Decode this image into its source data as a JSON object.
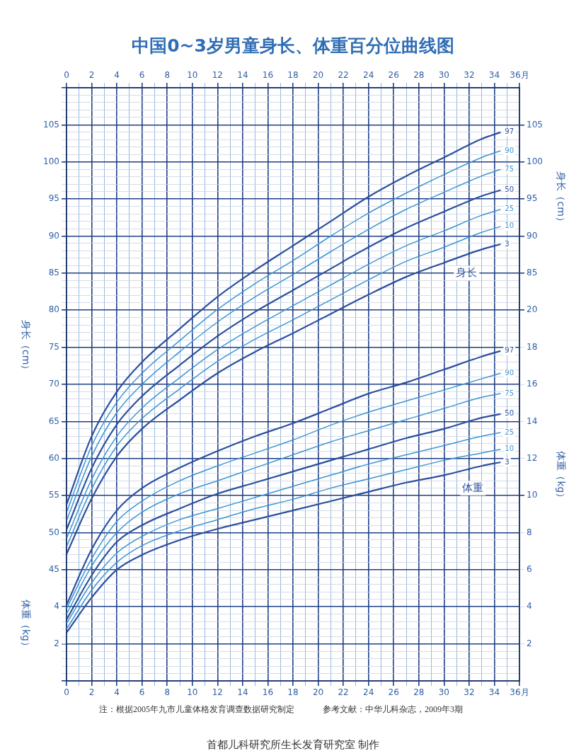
{
  "chart_data": [
    {
      "type": "line",
      "title": "中国0~3岁男童身长、体重百分位曲线图",
      "x": [
        0,
        2,
        4,
        6,
        9,
        12,
        15,
        18,
        21,
        24,
        27,
        30,
        33,
        34.5
      ],
      "series": [
        {
          "name": "97",
          "color": "#2c4f9e",
          "values": [
            53.8,
            63.0,
            69.0,
            73.0,
            77.5,
            81.8,
            85.4,
            88.7,
            92.0,
            95.3,
            98.1,
            100.6,
            103.1,
            104.0
          ]
        },
        {
          "name": "90",
          "color": "#3d95d3",
          "values": [
            52.7,
            61.7,
            67.6,
            71.5,
            75.9,
            80.1,
            83.6,
            86.7,
            90.0,
            93.1,
            95.8,
            98.3,
            100.6,
            101.5
          ]
        },
        {
          "name": "75",
          "color": "#3d95d3",
          "values": [
            51.6,
            60.3,
            66.2,
            70.0,
            74.4,
            78.4,
            81.8,
            84.8,
            87.9,
            90.9,
            93.6,
            95.9,
            98.1,
            99.0
          ]
        },
        {
          "name": "50",
          "color": "#2c4f9e",
          "values": [
            50.4,
            58.7,
            64.6,
            68.4,
            72.6,
            76.5,
            79.8,
            82.7,
            85.6,
            88.5,
            91.1,
            93.3,
            95.4,
            96.2
          ]
        },
        {
          "name": "25",
          "color": "#3d95d3",
          "values": [
            49.2,
            57.2,
            63.0,
            66.8,
            70.9,
            74.7,
            77.8,
            80.6,
            83.4,
            86.2,
            88.7,
            90.7,
            92.8,
            93.6
          ]
        },
        {
          "name": "10",
          "color": "#3d95d3",
          "values": [
            48.1,
            55.9,
            61.7,
            65.4,
            69.4,
            73.1,
            76.1,
            78.7,
            81.4,
            84.1,
            86.6,
            88.5,
            90.5,
            91.3
          ]
        },
        {
          "name": "3",
          "color": "#2c4f9e",
          "values": [
            47.1,
            54.6,
            60.3,
            64.0,
            67.9,
            71.5,
            74.4,
            76.9,
            79.5,
            82.1,
            84.5,
            86.4,
            88.2,
            88.9
          ]
        }
      ],
      "xlim": [
        0,
        36
      ],
      "xticks": [
        0,
        {
          "value": 1,
          "label": null
        },
        2,
        {
          "value": 3,
          "label": null
        },
        4,
        {
          "value": 5,
          "label": null
        },
        6,
        {
          "value": 7,
          "label": null
        },
        8,
        {
          "value": 9,
          "label": null
        },
        10,
        {
          "value": 11,
          "label": null
        },
        12,
        {
          "value": 13,
          "label": null
        },
        14,
        {
          "value": 15,
          "label": null
        },
        16,
        {
          "value": 17,
          "label": null
        },
        18,
        {
          "value": 19,
          "label": null
        },
        20,
        {
          "value": 21,
          "label": null
        },
        22,
        {
          "value": 23,
          "label": null
        },
        24,
        {
          "value": 25,
          "label": null
        },
        26,
        {
          "value": 27,
          "label": null
        },
        28,
        {
          "value": 29,
          "label": null
        },
        30,
        {
          "value": 31,
          "label": null
        },
        32,
        {
          "value": 33,
          "label": null
        },
        34,
        {
          "value": 35,
          "label": null
        },
        {
          "value": 36,
          "label": "36月"
        }
      ],
      "x2lim": [
        0,
        36
      ],
      "x2ticks": [
        0,
        {
          "value": 1,
          "label": null
        },
        2,
        {
          "value": 3,
          "label": null
        },
        4,
        {
          "value": 5,
          "label": null
        },
        6,
        {
          "value": 7,
          "label": null
        },
        8,
        {
          "value": 9,
          "label": null
        },
        10,
        {
          "value": 11,
          "label": null
        },
        12,
        {
          "value": 13,
          "label": null
        },
        14,
        {
          "value": 15,
          "label": null
        },
        16,
        {
          "value": 17,
          "label": null
        },
        18,
        {
          "value": 19,
          "label": null
        },
        20,
        {
          "value": 21,
          "label": null
        },
        22,
        {
          "value": 23,
          "label": null
        },
        24,
        {
          "value": 25,
          "label": null
        },
        26,
        {
          "value": 27,
          "label": null
        },
        28,
        {
          "value": 29,
          "label": null
        },
        30,
        {
          "value": 31,
          "label": null
        },
        32,
        {
          "value": 33,
          "label": null
        },
        34,
        {
          "value": 35,
          "label": null
        },
        {
          "value": 36,
          "label": "36月"
        }
      ],
      "ylim": [
        30,
        110
      ],
      "yticks": [
        {
          "value": 30,
          "label": null
        },
        {
          "value": 31,
          "label": null
        },
        {
          "value": 32,
          "label": null
        },
        {
          "value": 33,
          "label": null
        },
        {
          "value": 34,
          "label": null
        },
        {
          "value": 35,
          "label": null
        },
        {
          "value": 36,
          "label": null
        },
        {
          "value": 37,
          "label": null
        },
        {
          "value": 38,
          "label": null
        },
        {
          "value": 39,
          "label": null
        },
        {
          "value": 40,
          "label": null
        },
        {
          "value": 41,
          "label": null
        },
        {
          "value": 42,
          "label": null
        },
        {
          "value": 43,
          "label": null
        },
        {
          "value": 44,
          "label": null
        },
        45,
        {
          "value": 46,
          "label": null
        },
        {
          "value": 47,
          "label": null
        },
        {
          "value": 48,
          "label": null
        },
        {
          "value": 49,
          "label": null
        },
        50,
        {
          "value": 51,
          "label": null
        },
        {
          "value": 52,
          "label": null
        },
        {
          "value": 53,
          "label": null
        },
        {
          "value": 54,
          "label": null
        },
        55,
        {
          "value": 56,
          "label": null
        },
        {
          "value": 57,
          "label": null
        },
        {
          "value": 58,
          "label": null
        },
        {
          "value": 59,
          "label": null
        },
        60,
        {
          "value": 61,
          "label": null
        },
        {
          "value": 62,
          "label": null
        },
        {
          "value": 63,
          "label": null
        },
        {
          "value": 64,
          "label": null
        },
        65,
        {
          "value": 66,
          "label": null
        },
        {
          "value": 67,
          "label": null
        },
        {
          "value": 68,
          "label": null
        },
        {
          "value": 69,
          "label": null
        },
        70,
        {
          "value": 71,
          "label": null
        },
        {
          "value": 72,
          "label": null
        },
        {
          "value": 73,
          "label": null
        },
        {
          "value": 74,
          "label": null
        },
        75,
        {
          "value": 76,
          "label": null
        },
        {
          "value": 77,
          "label": null
        },
        {
          "value": 78,
          "label": null
        },
        {
          "value": 79,
          "label": null
        },
        80,
        {
          "value": 81,
          "label": null
        },
        {
          "value": 82,
          "label": null
        },
        {
          "value": 83,
          "label": null
        },
        {
          "value": 84,
          "label": null
        },
        85,
        {
          "value": 86,
          "label": null
        },
        {
          "value": 87,
          "label": null
        },
        {
          "value": 88,
          "label": null
        },
        {
          "value": 89,
          "label": null
        },
        90,
        {
          "value": 91,
          "label": null
        },
        {
          "value": 92,
          "label": null
        },
        {
          "value": 93,
          "label": null
        },
        {
          "value": 94,
          "label": null
        },
        95,
        {
          "value": 96,
          "label": null
        },
        {
          "value": 97,
          "label": null
        },
        {
          "value": 98,
          "label": null
        },
        {
          "value": 99,
          "label": null
        },
        100,
        {
          "value": 101,
          "label": null
        },
        {
          "value": 102,
          "label": null
        },
        {
          "value": 103,
          "label": null
        },
        {
          "value": 104,
          "label": null
        },
        105,
        {
          "value": 106,
          "label": null
        },
        {
          "value": 107,
          "label": null
        },
        {
          "value": 108,
          "label": null
        },
        {
          "value": 109,
          "label": null
        },
        {
          "value": 110,
          "label": null
        }
      ],
      "y2lim": [
        30,
        110
      ],
      "y2ticks": [
        85,
        90,
        95,
        100,
        105
      ],
      "ylabel": "身长（cm）",
      "y2label": "身长（cm）",
      "grid": true,
      "legend": false,
      "marker": "none",
      "annotations": [
        {
          "text": "身长",
          "x": 31.8,
          "y": 85
        },
        "注：根据2005年九市儿童体格发育调查数据研究制定",
        "参考文献：中华儿科杂志，2009年3期",
        "首都儿科研究所生长发育研究室 制作"
      ]
    },
    {
      "type": "line",
      "x": [
        0,
        2,
        4,
        6,
        9,
        12,
        15,
        18,
        21,
        24,
        27,
        30,
        33,
        34.5
      ],
      "series": [
        {
          "name": "97",
          "color": "#2c4f9e",
          "values": [
            4.1,
            7.1,
            9.2,
            10.4,
            11.5,
            12.4,
            13.2,
            13.9,
            14.7,
            15.5,
            16.1,
            16.8,
            17.5,
            17.8
          ]
        },
        {
          "name": "90",
          "color": "#3d95d3",
          "values": [
            3.9,
            6.6,
            8.6,
            9.7,
            10.8,
            11.6,
            12.3,
            13.0,
            13.8,
            14.5,
            15.1,
            15.7,
            16.3,
            16.6
          ]
        },
        {
          "name": "75",
          "color": "#3d95d3",
          "values": [
            3.6,
            6.2,
            8.0,
            9.1,
            10.1,
            10.8,
            11.5,
            12.2,
            12.9,
            13.5,
            14.1,
            14.7,
            15.3,
            15.5
          ]
        },
        {
          "name": "50",
          "color": "#2c4f9e",
          "values": [
            3.3,
            5.7,
            7.5,
            8.4,
            9.3,
            10.1,
            10.7,
            11.3,
            11.9,
            12.5,
            13.1,
            13.6,
            14.2,
            14.4
          ]
        },
        {
          "name": "25",
          "color": "#3d95d3",
          "values": [
            3.1,
            5.3,
            6.9,
            7.8,
            8.7,
            9.3,
            9.9,
            10.5,
            11.1,
            11.7,
            12.2,
            12.7,
            13.2,
            13.4
          ]
        },
        {
          "name": "10",
          "color": "#3d95d3",
          "values": [
            2.8,
            4.9,
            6.4,
            7.3,
            8.1,
            8.7,
            9.3,
            9.8,
            10.4,
            10.9,
            11.4,
            11.9,
            12.3,
            12.5
          ]
        },
        {
          "name": "3",
          "color": "#2c4f9e",
          "values": [
            2.6,
            4.5,
            6.0,
            6.8,
            7.6,
            8.2,
            8.7,
            9.2,
            9.7,
            10.2,
            10.7,
            11.1,
            11.6,
            11.8
          ]
        }
      ],
      "xlim": [
        0,
        36
      ],
      "ylim": [
        0,
        32
      ],
      "yticks": [
        2,
        4
      ],
      "y2lim": [
        0,
        32
      ],
      "y2ticks": [
        2,
        4,
        6,
        8,
        10,
        12,
        14,
        16,
        18,
        20
      ],
      "ylabel": "体重（kg）",
      "y2label": "体重（kg）",
      "tick_labels": "y",
      "legend": false,
      "marker": "none",
      "annotations": [
        {
          "text": "体重",
          "x": 32.3,
          "y": 10.4
        }
      ]
    }
  ]
}
